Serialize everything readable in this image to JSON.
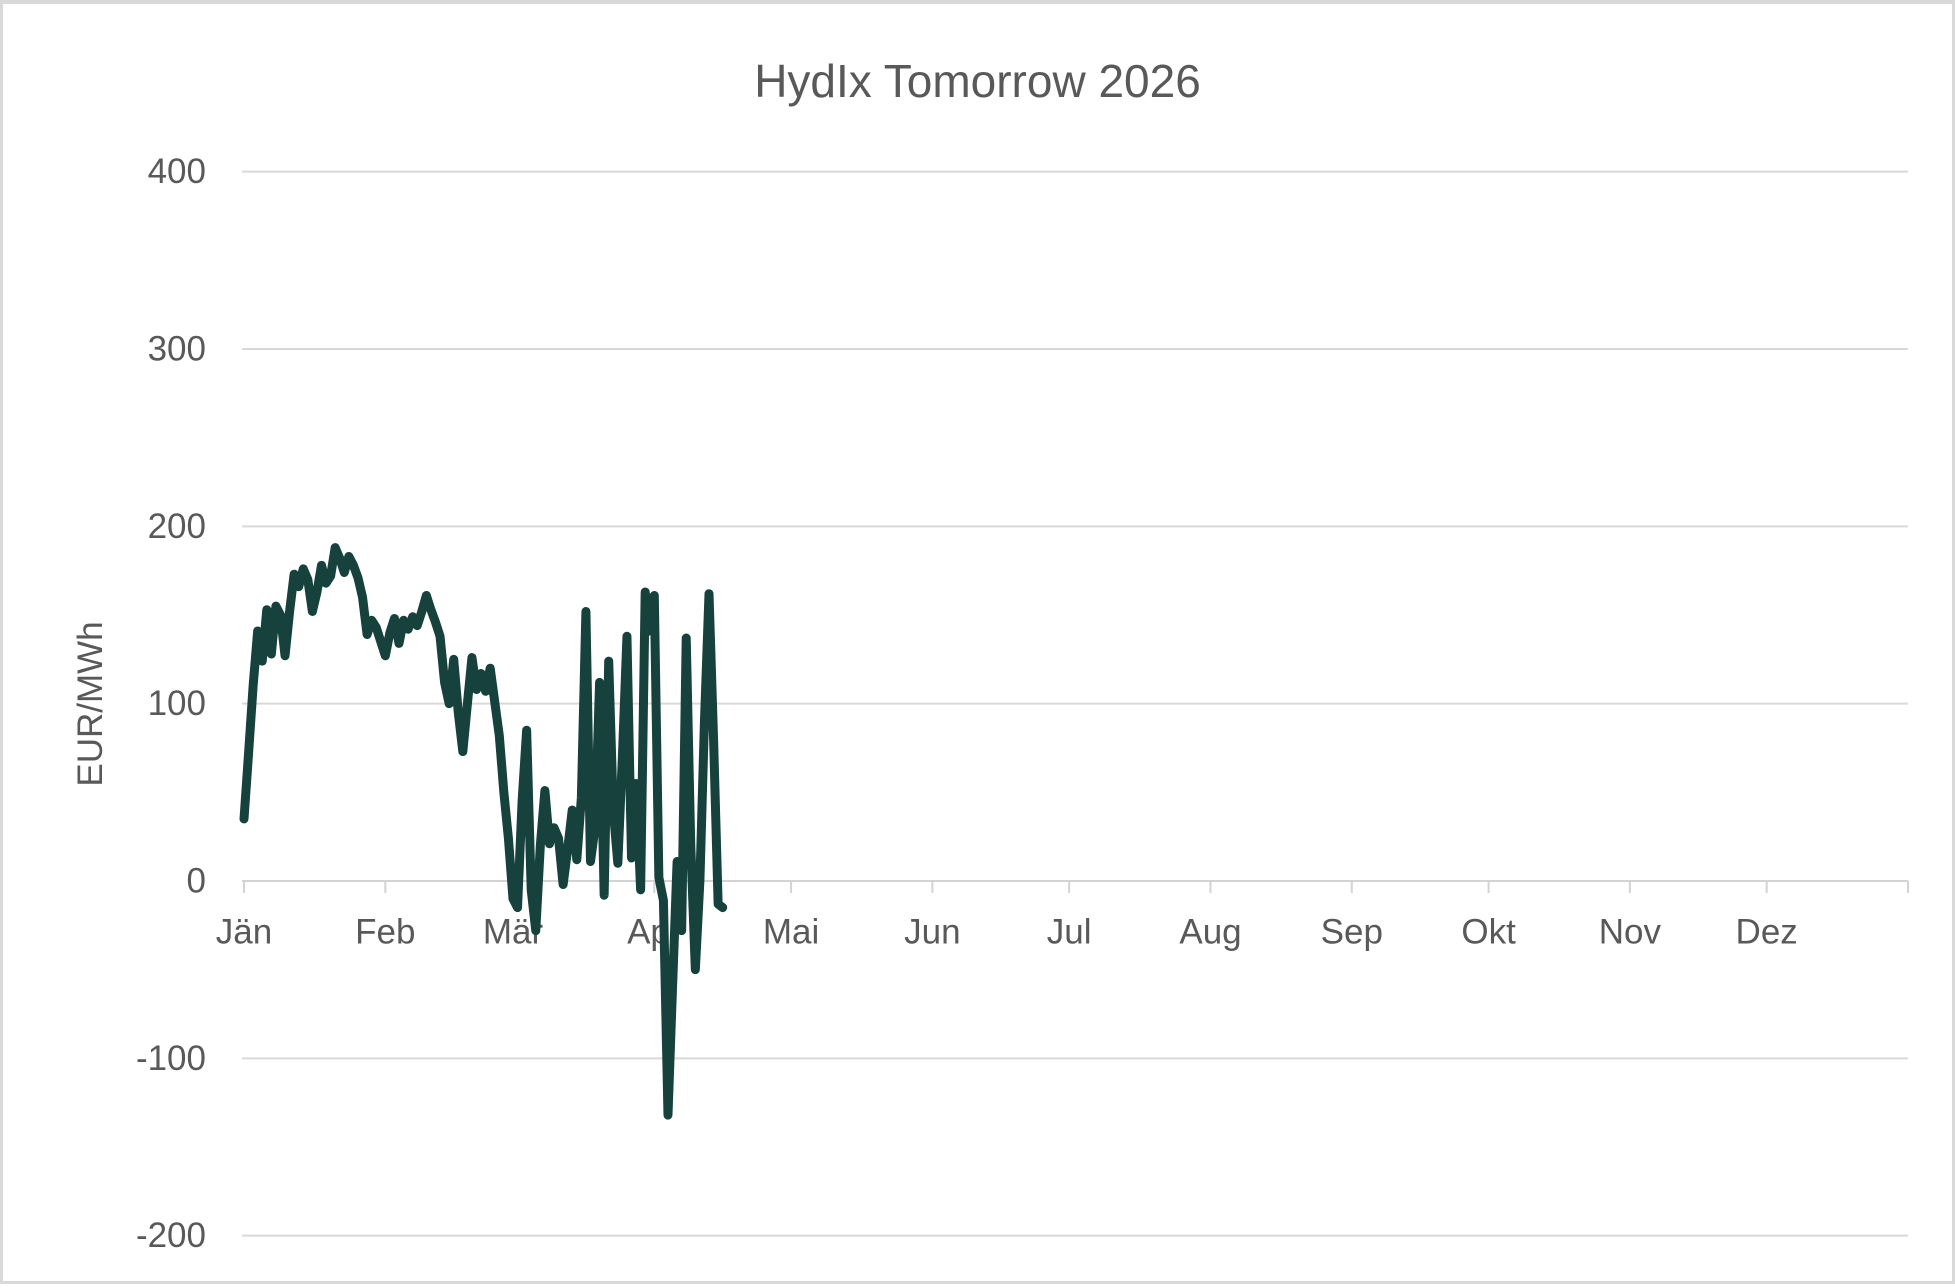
{
  "chart_data": {
    "type": "line",
    "title": "HydIx Tomorrow 2026",
    "ylabel": "EUR/MWh",
    "unit": "EUR/MWh",
    "legend": "none",
    "grid": "horizontal",
    "ylim": [
      -200,
      400
    ],
    "y_ticks": [
      400,
      300,
      200,
      100,
      0,
      -100,
      -200
    ],
    "x_tick_labels": [
      "Jän",
      "Feb",
      "Mär",
      "Apr",
      "Mai",
      "Jun",
      "Jul",
      "Aug",
      "Sep",
      "Okt",
      "Nov",
      "Dez"
    ],
    "month_start_days": [
      1,
      32,
      60,
      91,
      121,
      152,
      182,
      213,
      244,
      274,
      305,
      335,
      366
    ],
    "x_unit": "day_of_year",
    "x_range_days": [
      1,
      366
    ],
    "series": [
      {
        "name": "HydIx Tomorrow 2026",
        "start_day": 1,
        "values": [
          35,
          72,
          110,
          141,
          124,
          153,
          128,
          155,
          150,
          127,
          152,
          173,
          166,
          176,
          170,
          152,
          163,
          178,
          168,
          172,
          188,
          182,
          174,
          183,
          178,
          171,
          160,
          139,
          147,
          143,
          135,
          127,
          140,
          148,
          134,
          147,
          142,
          149,
          144,
          152,
          161,
          153,
          146,
          138,
          112,
          100,
          125,
          95,
          73,
          100,
          126,
          108,
          117,
          107,
          120,
          101,
          82,
          50,
          24,
          -10,
          -15,
          45,
          85,
          -5,
          -28,
          20,
          51,
          21,
          30,
          24,
          -2,
          18,
          40,
          12,
          47,
          152,
          11,
          30,
          112,
          -8,
          124,
          40,
          10,
          70,
          138,
          13,
          55,
          -5,
          163,
          141,
          161,
          2,
          -11,
          -132,
          -60,
          11,
          -28,
          137,
          20,
          -50,
          0,
          90,
          162,
          80,
          -13,
          -15
        ]
      }
    ],
    "colors": {
      "line": "#17413c",
      "grid": "#d9d9d9",
      "axis": "#d3d3d3",
      "text": "#595959",
      "background": "#ffffff",
      "border": "#d9d9d9"
    }
  }
}
